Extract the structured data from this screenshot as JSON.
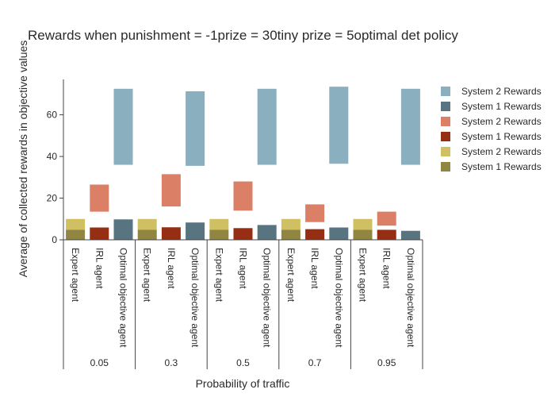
{
  "chart_data": {
    "type": "bar",
    "title": "Rewards when punishment = -1prize = 30tiny prize = 5optimal det policy",
    "xlabel": "Probability of traffic",
    "ylabel": "Average of collected rewards in objective values",
    "ylim": [
      0,
      77
    ],
    "yticks": [
      0,
      20,
      40,
      60
    ],
    "groups": [
      "0.05",
      "0.3",
      "0.5",
      "0.7",
      "0.95"
    ],
    "agents": [
      "Expert agent",
      "IRL agent",
      "Optimal objective agent"
    ],
    "legend": {
      "placement": "right",
      "entries": [
        {
          "label": "System 2 Rewards",
          "color": "#8aafbe"
        },
        {
          "label": "System 1 Rewards",
          "color": "#587480"
        },
        {
          "label": "System 2 Rewards",
          "color": "#db7f66"
        },
        {
          "label": "System 1 Rewards",
          "color": "#952e12"
        },
        {
          "label": "System 2 Rewards",
          "color": "#cfc063"
        },
        {
          "label": "System 1 Rewards",
          "color": "#908641"
        }
      ]
    },
    "series": [
      {
        "agent": "Optimal objective agent",
        "system1_color": "#587480",
        "system2_color": "#8aafbe",
        "system1": [
          9.8,
          8.3,
          7.1,
          5.9,
          4.3
        ],
        "system2_range": [
          [
            36,
            72.5
          ],
          [
            35.5,
            71.3
          ],
          [
            36,
            72.5
          ],
          [
            36.5,
            73.5
          ],
          [
            36,
            72.5
          ]
        ]
      },
      {
        "agent": "IRL agent",
        "system1_color": "#952e12",
        "system2_color": "#db7f66",
        "system1": [
          5.9,
          6.0,
          5.6,
          5.1,
          4.8
        ],
        "system2_range": [
          [
            13.5,
            26.5
          ],
          [
            16,
            31.5
          ],
          [
            14,
            28
          ],
          [
            8.5,
            17
          ],
          [
            6.8,
            13.5
          ]
        ]
      },
      {
        "agent": "Expert agent",
        "system1_color": "#908641",
        "system2_color": "#cfc063",
        "system1": [
          4.8,
          4.8,
          4.8,
          4.8,
          4.8
        ],
        "system2_range": [
          [
            4.8,
            10
          ],
          [
            4.8,
            10
          ],
          [
            4.8,
            10
          ],
          [
            4.8,
            10
          ],
          [
            4.8,
            10
          ]
        ]
      }
    ]
  }
}
